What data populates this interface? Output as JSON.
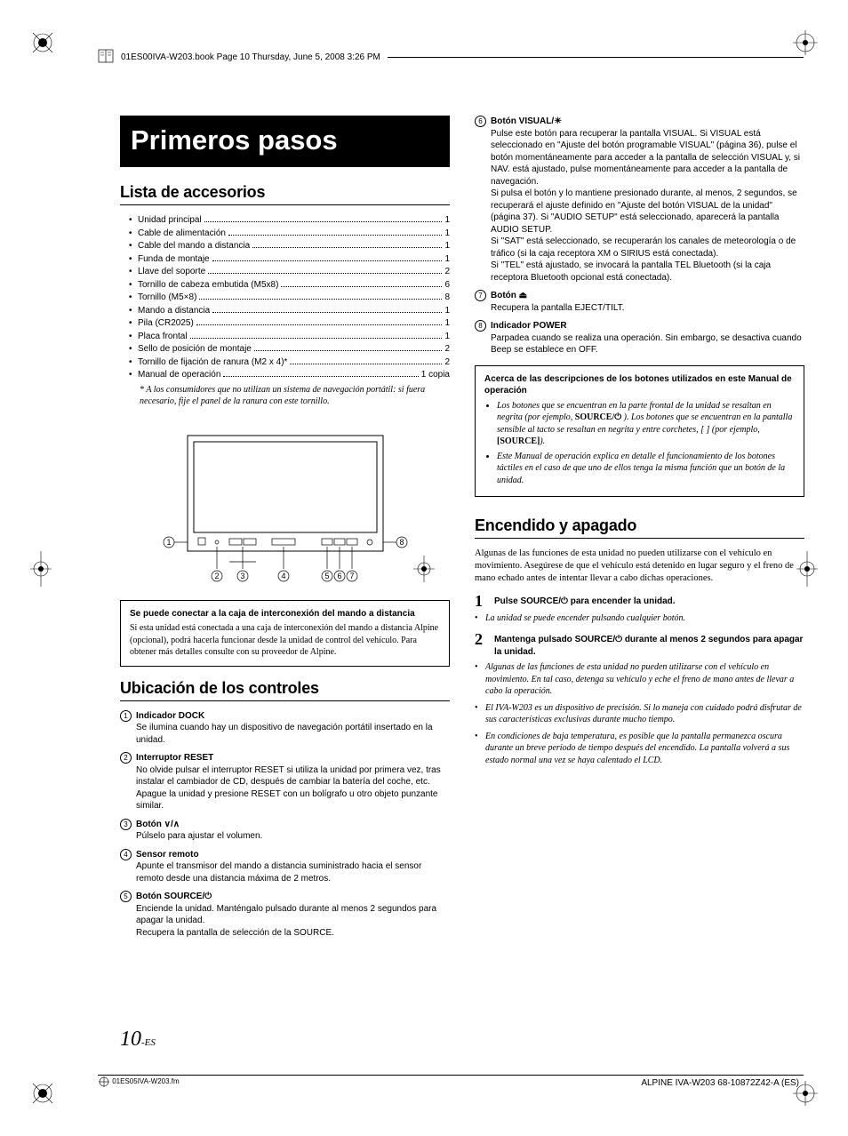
{
  "print": {
    "header_text": "01ES00IVA-W203.book  Page 10  Thursday, June 5, 2008  3:26 PM",
    "footer_file": "01ES05IVA-W203.fm",
    "footer_right": "ALPINE IVA-W203 68-10872Z42-A (ES)"
  },
  "page_number": "10",
  "page_number_suffix": "-ES",
  "title": "Primeros pasos",
  "accessories": {
    "heading": "Lista de accesorios",
    "items": [
      {
        "label": "Unidad principal",
        "qty": "1"
      },
      {
        "label": "Cable de alimentación",
        "qty": "1"
      },
      {
        "label": "Cable del mando a distancia",
        "qty": "1"
      },
      {
        "label": "Funda de montaje",
        "qty": "1"
      },
      {
        "label": "Llave del soporte",
        "qty": "2"
      },
      {
        "label": "Tornillo de cabeza embutida (M5x8)",
        "qty": "6"
      },
      {
        "label": "Tornillo (M5×8)",
        "qty": "8"
      },
      {
        "label": "Mando a distancia",
        "qty": "1"
      },
      {
        "label": "Pila (CR2025)",
        "qty": "1"
      },
      {
        "label": "Placa frontal",
        "qty": "1"
      },
      {
        "label": "Sello de posición de montaje",
        "qty": "2"
      },
      {
        "label": "Tornillo de fijación de ranura (M2 x 4)*",
        "qty": "2"
      },
      {
        "label": "Manual de operación",
        "qty": "1 copia"
      }
    ],
    "footnote": "* A los consumidores que no utilizan un sistema de navegación portátil: si fuera necesario, fije el panel de la ranura con este tornillo."
  },
  "diagram": {
    "callouts": [
      "1",
      "2",
      "3",
      "4",
      "5",
      "6",
      "7",
      "8"
    ]
  },
  "connect_box": {
    "heading": "Se puede conectar a la caja de interconexión del mando a distancia",
    "text": "Si esta unidad está conectada a una caja de interconexión del mando a distancia Alpine (opcional), podrá hacerla funcionar desde la unidad de control del vehículo. Para obtener más detalles consulte con su proveedor de Alpine."
  },
  "controls": {
    "heading": "Ubicación de los controles",
    "items": [
      {
        "num": "1",
        "title": "Indicador DOCK",
        "text": "Se ilumina cuando hay un dispositivo de navegación portátil insertado en la unidad."
      },
      {
        "num": "2",
        "title": "Interruptor RESET",
        "text": "No olvide pulsar el interruptor RESET si utiliza la unidad por primera vez, tras instalar el cambiador de CD, después de cambiar la batería del coche, etc.\nApague la unidad y presione RESET con un bolígrafo u otro objeto punzante similar."
      },
      {
        "num": "3",
        "title": "Botón ∨/∧",
        "text": "Púlselo para ajustar el volumen."
      },
      {
        "num": "4",
        "title": "Sensor remoto",
        "text": "Apunte el transmisor del mando a distancia suministrado hacia el sensor remoto desde una distancia máxima de 2 metros."
      },
      {
        "num": "5",
        "title": "Botón SOURCE/⏻",
        "text": "Enciende la unidad. Manténgalo pulsado durante al menos 2 segundos para apagar la unidad.\nRecupera la pantalla de selección de la SOURCE."
      },
      {
        "num": "6",
        "title": "Botón VISUAL/☀",
        "text": "Pulse este botón para recuperar la pantalla VISUAL. Si VISUAL está seleccionado en \"Ajuste del botón programable VISUAL\" (página 36), pulse el botón momentáneamente para acceder a la pantalla de selección VISUAL y, si NAV. está ajustado, pulse momentáneamente para acceder a la pantalla de navegación.\nSi pulsa el botón y lo mantiene presionado durante, al menos, 2 segundos, se recuperará el ajuste definido en \"Ajuste del botón VISUAL de la unidad\" (página 37). Si \"AUDIO SETUP\" está seleccionado, aparecerá la pantalla AUDIO SETUP.\nSi \"SAT\" está seleccionado, se recuperarán los canales de meteorología o de tráfico (si la caja receptora XM o SIRIUS está conectada).\nSi \"TEL\" está ajustado, se invocará la pantalla TEL Bluetooth (si la caja receptora Bluetooth opcional está conectada)."
      },
      {
        "num": "7",
        "title": "Botón ⏏",
        "text": "Recupera la pantalla EJECT/TILT."
      },
      {
        "num": "8",
        "title": "Indicador POWER",
        "text": "Parpadea cuando se realiza una operación. Sin embargo, se desactiva cuando Beep se establece en OFF."
      }
    ]
  },
  "desc_box": {
    "heading": "Acerca de las descripciones de los botones utilizados en este Manual de operación",
    "bullets": [
      "Los botones que se encuentran en la parte frontal de la unidad se resaltan en negrita (por ejemplo, SOURCE/⏻ ). Los botones que se encuentran en la pantalla sensible al tacto se resaltan en negrita y entre corchetes, [ ] (por ejemplo, [SOURCE]).",
      "Este Manual de operación explica en detalle el funcionamiento de los botones táctiles en el caso de que uno de ellos tenga la misma función que un botón de la unidad."
    ]
  },
  "power": {
    "heading": "Encendido y apagado",
    "intro": "Algunas de las funciones de esta unidad no pueden utilizarse con el vehículo en movimiento. Asegúrese de que el vehículo está detenido en lugar seguro y el freno de mano echado antes de intentar llevar a cabo dichas operaciones.",
    "steps": [
      {
        "n": "1",
        "pre": "Pulse ",
        "bold": "SOURCE/⏻",
        "post": " para encender la unidad."
      },
      {
        "n": "2",
        "pre": "Mantenga pulsado ",
        "bold": "SOURCE/⏻",
        "post": " durante al menos 2 segundos para apagar la unidad."
      }
    ],
    "step1_note": "La unidad se puede encender pulsando cualquier botón.",
    "notes": [
      "Algunas de las funciones de esta unidad no pueden utilizarse con el vehículo en movimiento. En tal caso, detenga su vehículo y eche el freno de mano antes de llevar a cabo la operación.",
      "El IVA-W203 es un dispositivo de precisión. Si lo maneja con cuidado podrá disfrutar de sus características exclusivas durante mucho tiempo.",
      "En condiciones de baja temperatura, es posible que la pantalla permanezca oscura durante un breve período de tiempo después del encendido. La pantalla volverá a sus estado normal una vez se haya calentado el LCD."
    ]
  }
}
